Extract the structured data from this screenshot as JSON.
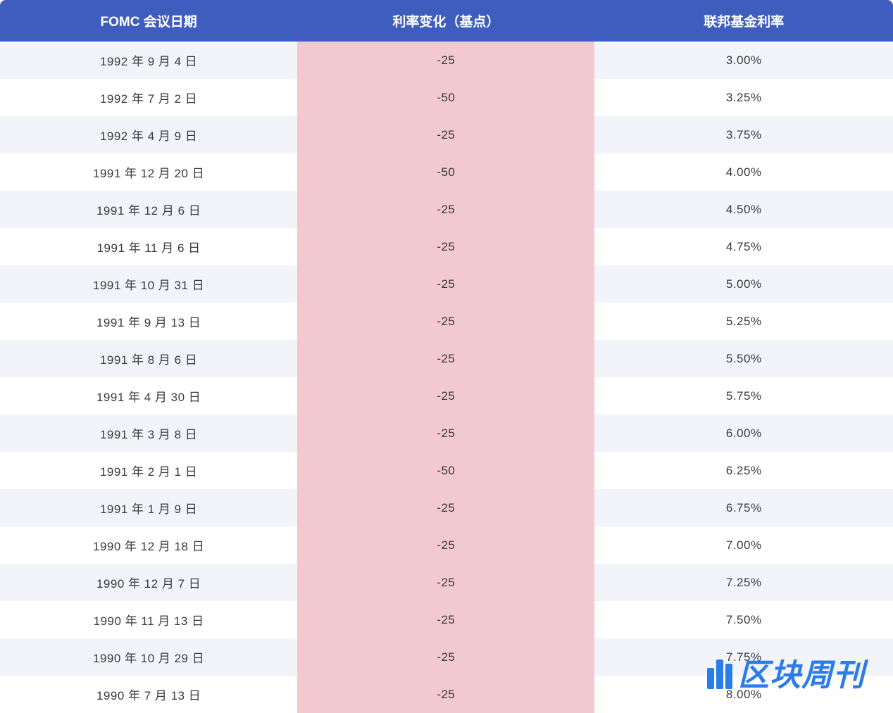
{
  "table": {
    "type": "table",
    "header_bg_color": "#3f5dbf",
    "header_text_color": "#ffffff",
    "header_fontsize": 19,
    "row_even_bg": "#f3f4f9",
    "row_odd_bg": "#ffffff",
    "highlight_col_bg": "#f1c9ce",
    "cell_text_color": "#3a3a3a",
    "cell_fontsize": 17,
    "columns": [
      {
        "key": "date",
        "label": "FOMC 会议日期",
        "width": "33.3%"
      },
      {
        "key": "change",
        "label": "利率变化（基点）",
        "width": "33.3%",
        "highlighted": true
      },
      {
        "key": "rate",
        "label": "联邦基金利率",
        "width": "33.4%"
      }
    ],
    "rows": [
      {
        "date": "1992 年 9 月 4 日",
        "change": "-25",
        "rate": "3.00%"
      },
      {
        "date": "1992 年 7 月 2 日",
        "change": "-50",
        "rate": "3.25%"
      },
      {
        "date": "1992 年 4 月 9 日",
        "change": "-25",
        "rate": "3.75%"
      },
      {
        "date": "1991 年 12 月 20 日",
        "change": "-50",
        "rate": "4.00%"
      },
      {
        "date": "1991 年 12 月 6 日",
        "change": "-25",
        "rate": "4.50%"
      },
      {
        "date": "1991 年 11 月 6 日",
        "change": "-25",
        "rate": "4.75%"
      },
      {
        "date": "1991 年 10 月 31 日",
        "change": "-25",
        "rate": "5.00%"
      },
      {
        "date": "1991 年 9 月 13 日",
        "change": "-25",
        "rate": "5.25%"
      },
      {
        "date": "1991 年 8 月 6 日",
        "change": "-25",
        "rate": "5.50%"
      },
      {
        "date": "1991 年 4 月 30 日",
        "change": "-25",
        "rate": "5.75%"
      },
      {
        "date": "1991 年 3 月 8 日",
        "change": "-25",
        "rate": "6.00%"
      },
      {
        "date": "1991 年 2 月 1 日",
        "change": "-50",
        "rate": "6.25%"
      },
      {
        "date": "1991 年 1 月 9 日",
        "change": "-25",
        "rate": "6.75%"
      },
      {
        "date": "1990 年 12 月 18 日",
        "change": "-25",
        "rate": "7.00%"
      },
      {
        "date": "1990 年 12 月 7 日",
        "change": "-25",
        "rate": "7.25%"
      },
      {
        "date": "1990 年 11 月 13 日",
        "change": "-25",
        "rate": "7.50%"
      },
      {
        "date": "1990 年 10 月 29 日",
        "change": "-25",
        "rate": "7.75%"
      },
      {
        "date": "1990 年 7 月 13 日",
        "change": "-25",
        "rate": "8.00%"
      }
    ]
  },
  "watermark": {
    "text": "区块周刊",
    "color": "#2a7de8",
    "fontsize": 44
  }
}
